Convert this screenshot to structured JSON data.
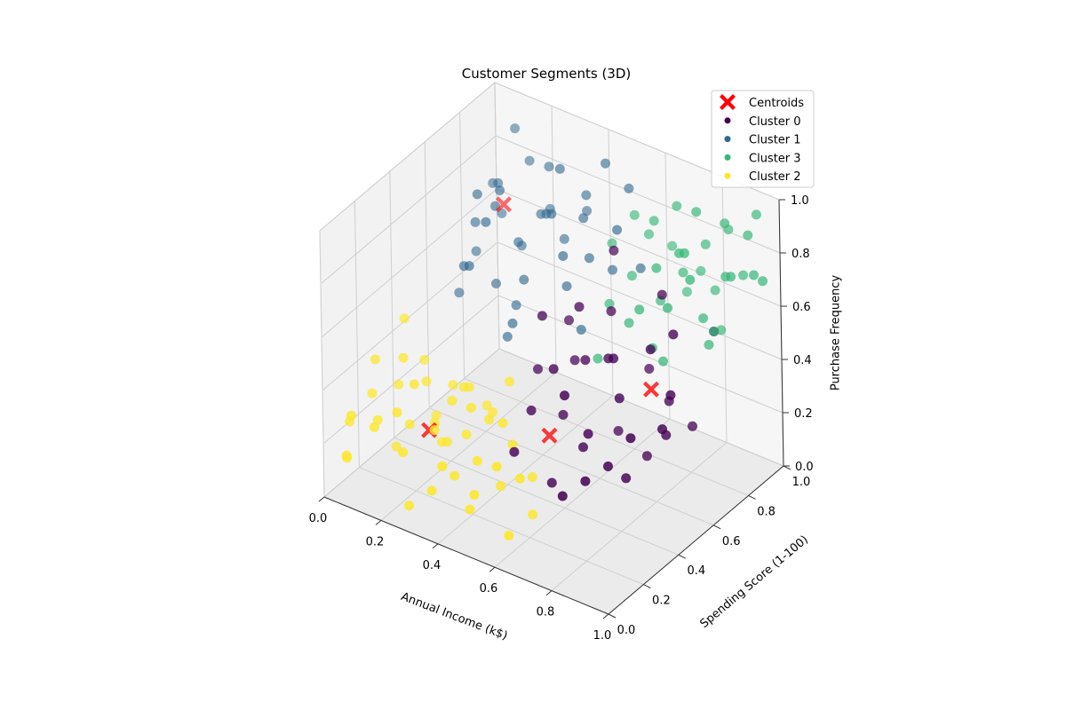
{
  "chart_data": {
    "type": "scatter",
    "projection": "3d",
    "title": "Customer Segments (3D)",
    "xlabel": "Annual Income (k$)",
    "ylabel": "Spending Score (1-100)",
    "zlabel": "Purchase Frequency",
    "xlim": [
      0,
      1
    ],
    "ylim": [
      0,
      1
    ],
    "zlim": [
      0,
      1
    ],
    "xticks": [
      "0.0",
      "0.2",
      "0.4",
      "0.6",
      "0.8",
      "1.0"
    ],
    "yticks": [
      "0.0",
      "0.2",
      "0.4",
      "0.6",
      "0.8",
      "1.0"
    ],
    "zticks": [
      "0.0",
      "0.2",
      "0.4",
      "0.6",
      "0.8",
      "1.0"
    ],
    "grid": true,
    "legend_position": "top-right",
    "legend": [
      "Centroids",
      "Cluster 0",
      "Cluster 1",
      "Cluster 3",
      "Cluster 2"
    ],
    "centroids": {
      "name": "Centroids",
      "color": "#ff0000",
      "points": [
        [
          0.15,
          0.8,
          0.72
        ],
        [
          0.85,
          0.5,
          0.5
        ],
        [
          0.55,
          0.4,
          0.25
        ],
        [
          0.25,
          0.2,
          0.25
        ]
      ]
    },
    "series": [
      {
        "name": "Cluster 0",
        "color": "#440154",
        "points": [
          [
            0.6,
            0.7,
            0.8
          ],
          [
            0.7,
            0.5,
            0.55
          ],
          [
            0.8,
            0.4,
            0.5
          ],
          [
            0.9,
            0.55,
            0.7
          ],
          [
            0.75,
            0.3,
            0.4
          ],
          [
            0.65,
            0.6,
            0.65
          ],
          [
            0.85,
            0.25,
            0.35
          ],
          [
            0.55,
            0.55,
            0.45
          ],
          [
            0.95,
            0.45,
            0.55
          ],
          [
            0.7,
            0.35,
            0.3
          ],
          [
            0.8,
            0.65,
            0.75
          ],
          [
            0.6,
            0.4,
            0.35
          ],
          [
            0.9,
            0.3,
            0.45
          ],
          [
            0.5,
            0.6,
            0.55
          ],
          [
            0.75,
            0.45,
            0.6
          ],
          [
            0.85,
            0.6,
            0.4
          ],
          [
            0.65,
            0.25,
            0.2
          ],
          [
            0.95,
            0.7,
            0.65
          ],
          [
            0.55,
            0.3,
            0.4
          ],
          [
            0.7,
            0.55,
            0.25
          ],
          [
            0.8,
            0.2,
            0.3
          ],
          [
            0.9,
            0.5,
            0.35
          ],
          [
            0.6,
            0.5,
            0.7
          ],
          [
            0.75,
            0.65,
            0.45
          ],
          [
            0.85,
            0.35,
            0.25
          ],
          [
            0.95,
            0.4,
            0.45
          ],
          [
            0.65,
            0.45,
            0.55
          ],
          [
            0.7,
            0.25,
            0.55
          ],
          [
            0.8,
            0.55,
            0.2
          ],
          [
            0.5,
            0.45,
            0.65
          ],
          [
            0.6,
            0.35,
            0.55
          ],
          [
            0.9,
            0.65,
            0.3
          ],
          [
            0.75,
            0.15,
            0.25
          ],
          [
            0.85,
            0.5,
            0.65
          ],
          [
            0.45,
            0.5,
            0.4
          ],
          [
            0.55,
            0.2,
            0.3
          ]
        ]
      },
      {
        "name": "Cluster 1",
        "color": "#31688e",
        "points": [
          [
            0.05,
            0.9,
            0.7
          ],
          [
            0.1,
            0.85,
            0.75
          ],
          [
            0.15,
            0.95,
            0.8
          ],
          [
            0.2,
            0.8,
            0.6
          ],
          [
            0.25,
            0.9,
            0.85
          ],
          [
            0.08,
            0.75,
            0.65
          ],
          [
            0.12,
            0.7,
            0.8
          ],
          [
            0.18,
            0.85,
            0.55
          ],
          [
            0.22,
            0.95,
            0.65
          ],
          [
            0.3,
            0.8,
            0.75
          ],
          [
            0.05,
            0.8,
            0.5
          ],
          [
            0.1,
            0.95,
            0.9
          ],
          [
            0.15,
            0.75,
            0.45
          ],
          [
            0.2,
            0.7,
            0.85
          ],
          [
            0.25,
            0.85,
            0.7
          ],
          [
            0.3,
            0.9,
            0.6
          ],
          [
            0.35,
            0.75,
            0.8
          ],
          [
            0.4,
            0.85,
            0.75
          ],
          [
            0.45,
            0.8,
            0.65
          ],
          [
            0.35,
            0.95,
            0.7
          ],
          [
            0.08,
            0.9,
            0.6
          ],
          [
            0.12,
            0.8,
            0.7
          ],
          [
            0.18,
            0.65,
            0.75
          ],
          [
            0.28,
            0.7,
            0.55
          ],
          [
            0.32,
            0.85,
            0.9
          ],
          [
            0.38,
            0.9,
            0.8
          ],
          [
            0.42,
            0.7,
            0.7
          ],
          [
            0.45,
            0.9,
            0.95
          ],
          [
            0.5,
            0.85,
            0.6
          ],
          [
            0.4,
            0.75,
            0.55
          ],
          [
            0.15,
            0.6,
            0.6
          ],
          [
            0.22,
            0.75,
            0.4
          ],
          [
            0.05,
            0.7,
            0.4
          ],
          [
            0.1,
            0.65,
            0.55
          ],
          [
            0.48,
            0.7,
            0.45
          ],
          [
            0.55,
            0.8,
            0.8
          ],
          [
            0.6,
            0.85,
            0.65
          ],
          [
            0.5,
            0.95,
            0.85
          ],
          [
            0.3,
            0.6,
            0.45
          ],
          [
            0.25,
            0.65,
            0.35
          ]
        ]
      },
      {
        "name": "Cluster 3",
        "color": "#35b779",
        "points": [
          [
            0.8,
            0.9,
            0.8
          ],
          [
            0.85,
            0.95,
            0.85
          ],
          [
            0.9,
            0.85,
            0.75
          ],
          [
            0.95,
            0.9,
            0.9
          ],
          [
            0.75,
            0.85,
            0.7
          ],
          [
            0.8,
            0.75,
            0.85
          ],
          [
            0.85,
            0.8,
            0.6
          ],
          [
            0.9,
            0.95,
            0.7
          ],
          [
            0.95,
            0.8,
            0.8
          ],
          [
            0.7,
            0.9,
            0.9
          ],
          [
            0.75,
            0.95,
            0.65
          ],
          [
            0.8,
            0.85,
            0.95
          ],
          [
            0.85,
            0.7,
            0.9
          ],
          [
            0.9,
            0.75,
            0.55
          ],
          [
            0.95,
            0.7,
            0.65
          ],
          [
            1.0,
            0.85,
            0.8
          ],
          [
            0.7,
            0.8,
            0.6
          ],
          [
            0.75,
            0.7,
            0.8
          ],
          [
            0.65,
            0.85,
            0.85
          ],
          [
            0.6,
            0.9,
            0.75
          ],
          [
            0.9,
            0.85,
            0.95
          ],
          [
            0.85,
            0.9,
            0.5
          ],
          [
            0.8,
            0.95,
            0.6
          ],
          [
            0.95,
            0.95,
            0.95
          ],
          [
            0.65,
            0.7,
            0.55
          ],
          [
            0.7,
            0.75,
            0.45
          ],
          [
            0.6,
            0.8,
            0.65
          ],
          [
            0.55,
            0.9,
            0.8
          ],
          [
            0.75,
            0.6,
            0.7
          ],
          [
            0.85,
            0.6,
            0.75
          ],
          [
            0.5,
            0.85,
            0.7
          ],
          [
            0.55,
            0.75,
            0.55
          ],
          [
            0.9,
            0.65,
            0.85
          ],
          [
            1.0,
            0.9,
            0.75
          ],
          [
            0.8,
            0.65,
            0.5
          ],
          [
            0.6,
            0.6,
            0.45
          ],
          [
            0.7,
            0.95,
            0.55
          ],
          [
            0.65,
            0.95,
            0.7
          ]
        ]
      },
      {
        "name": "Cluster 2",
        "color": "#fde725",
        "points": [
          [
            0.05,
            0.2,
            0.3
          ],
          [
            0.1,
            0.15,
            0.25
          ],
          [
            0.15,
            0.25,
            0.2
          ],
          [
            0.2,
            0.1,
            0.35
          ],
          [
            0.25,
            0.3,
            0.15
          ],
          [
            0.3,
            0.15,
            0.3
          ],
          [
            0.35,
            0.25,
            0.25
          ],
          [
            0.4,
            0.1,
            0.2
          ],
          [
            0.05,
            0.05,
            0.15
          ],
          [
            0.1,
            0.3,
            0.4
          ],
          [
            0.15,
            0.05,
            0.3
          ],
          [
            0.2,
            0.35,
            0.1
          ],
          [
            0.25,
            0.05,
            0.25
          ],
          [
            0.3,
            0.35,
            0.35
          ],
          [
            0.35,
            0.05,
            0.15
          ],
          [
            0.4,
            0.3,
            0.3
          ],
          [
            0.45,
            0.15,
            0.25
          ],
          [
            0.5,
            0.2,
            0.15
          ],
          [
            0.55,
            0.1,
            0.3
          ],
          [
            0.45,
            0.35,
            0.2
          ],
          [
            0.0,
            0.15,
            0.2
          ],
          [
            0.05,
            0.35,
            0.25
          ],
          [
            0.1,
            0.0,
            0.35
          ],
          [
            0.15,
            0.4,
            0.15
          ],
          [
            0.2,
            0.2,
            0.4
          ],
          [
            0.25,
            0.4,
            0.3
          ],
          [
            0.3,
            0.0,
            0.1
          ],
          [
            0.35,
            0.4,
            0.25
          ],
          [
            0.4,
            0.2,
            0.4
          ],
          [
            0.5,
            0.05,
            0.2
          ],
          [
            0.55,
            0.3,
            0.15
          ],
          [
            0.6,
            0.15,
            0.25
          ],
          [
            0.0,
            0.3,
            0.35
          ],
          [
            0.02,
            0.1,
            0.1
          ],
          [
            0.12,
            0.22,
            0.12
          ],
          [
            0.22,
            0.28,
            0.22
          ],
          [
            0.32,
            0.22,
            0.38
          ],
          [
            0.42,
            0.0,
            0.3
          ],
          [
            0.48,
            0.25,
            0.35
          ],
          [
            0.58,
            0.25,
            0.05
          ],
          [
            0.08,
            0.45,
            0.3
          ],
          [
            0.18,
            0.45,
            0.25
          ],
          [
            0.28,
            0.48,
            0.2
          ],
          [
            0.38,
            0.45,
            0.35
          ],
          [
            0.03,
            0.42,
            0.45
          ],
          [
            0.13,
            0.38,
            0.28
          ],
          [
            0.62,
            0.05,
            0.1
          ],
          [
            0.44,
            0.12,
            0.08
          ]
        ]
      }
    ]
  }
}
